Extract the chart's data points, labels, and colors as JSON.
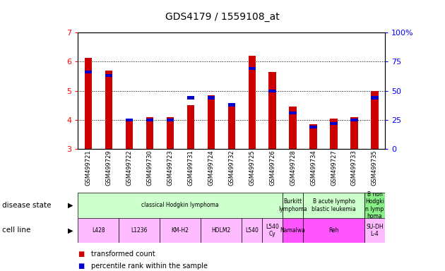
{
  "title": "GDS4179 / 1559108_at",
  "samples": [
    "GSM499721",
    "GSM499729",
    "GSM499722",
    "GSM499730",
    "GSM499723",
    "GSM499731",
    "GSM499724",
    "GSM499732",
    "GSM499725",
    "GSM499726",
    "GSM499728",
    "GSM499734",
    "GSM499727",
    "GSM499733",
    "GSM499735"
  ],
  "transformed_count": [
    6.12,
    5.7,
    3.95,
    4.1,
    4.1,
    4.5,
    4.85,
    4.45,
    6.2,
    5.65,
    4.45,
    3.85,
    4.05,
    4.1,
    5.0
  ],
  "percentile_rank": [
    66,
    63,
    25,
    25,
    25,
    44,
    44,
    38,
    69,
    50,
    31,
    19,
    22,
    25,
    44
  ],
  "ylim": [
    3,
    7
  ],
  "yticks": [
    3,
    4,
    5,
    6,
    7
  ],
  "right_yticks": [
    0,
    25,
    50,
    75,
    100
  ],
  "right_ytick_labels": [
    "0",
    "25",
    "50",
    "75",
    "100%"
  ],
  "bar_color": "#cc0000",
  "percentile_color": "#0000cc",
  "disease_state_groups": [
    {
      "label": "classical Hodgkin lymphoma",
      "start": 0,
      "end": 9,
      "color": "#ccffcc"
    },
    {
      "label": "Burkitt\nlymphoma",
      "start": 10,
      "end": 10,
      "color": "#ccffcc"
    },
    {
      "label": "B acute lympho\nblastic leukemia",
      "start": 11,
      "end": 13,
      "color": "#ccffcc"
    },
    {
      "label": "B non\nHodgki\nn lymp\nhoma",
      "start": 14,
      "end": 14,
      "color": "#88ee88"
    }
  ],
  "cell_line_groups": [
    {
      "label": "L428",
      "start": 0,
      "end": 1,
      "color": "#ffbbff"
    },
    {
      "label": "L1236",
      "start": 2,
      "end": 3,
      "color": "#ffbbff"
    },
    {
      "label": "KM-H2",
      "start": 4,
      "end": 5,
      "color": "#ffbbff"
    },
    {
      "label": "HDLM2",
      "start": 6,
      "end": 7,
      "color": "#ffbbff"
    },
    {
      "label": "L540",
      "start": 8,
      "end": 8,
      "color": "#ffbbff"
    },
    {
      "label": "L540\nCy",
      "start": 9,
      "end": 9,
      "color": "#ffbbff"
    },
    {
      "label": "Namalwa",
      "start": 10,
      "end": 10,
      "color": "#ff55ff"
    },
    {
      "label": "Reh",
      "start": 11,
      "end": 13,
      "color": "#ff55ff"
    },
    {
      "label": "SU-DH\nL-4",
      "start": 14,
      "end": 14,
      "color": "#ffbbff"
    }
  ],
  "left_label": "disease state",
  "left_label2": "cell line",
  "legend_items": [
    {
      "label": "transformed count",
      "color": "#cc0000"
    },
    {
      "label": "percentile rank within the sample",
      "color": "#0000cc"
    }
  ],
  "background_color": "#ffffff",
  "plot_bg_color": "#ffffff"
}
